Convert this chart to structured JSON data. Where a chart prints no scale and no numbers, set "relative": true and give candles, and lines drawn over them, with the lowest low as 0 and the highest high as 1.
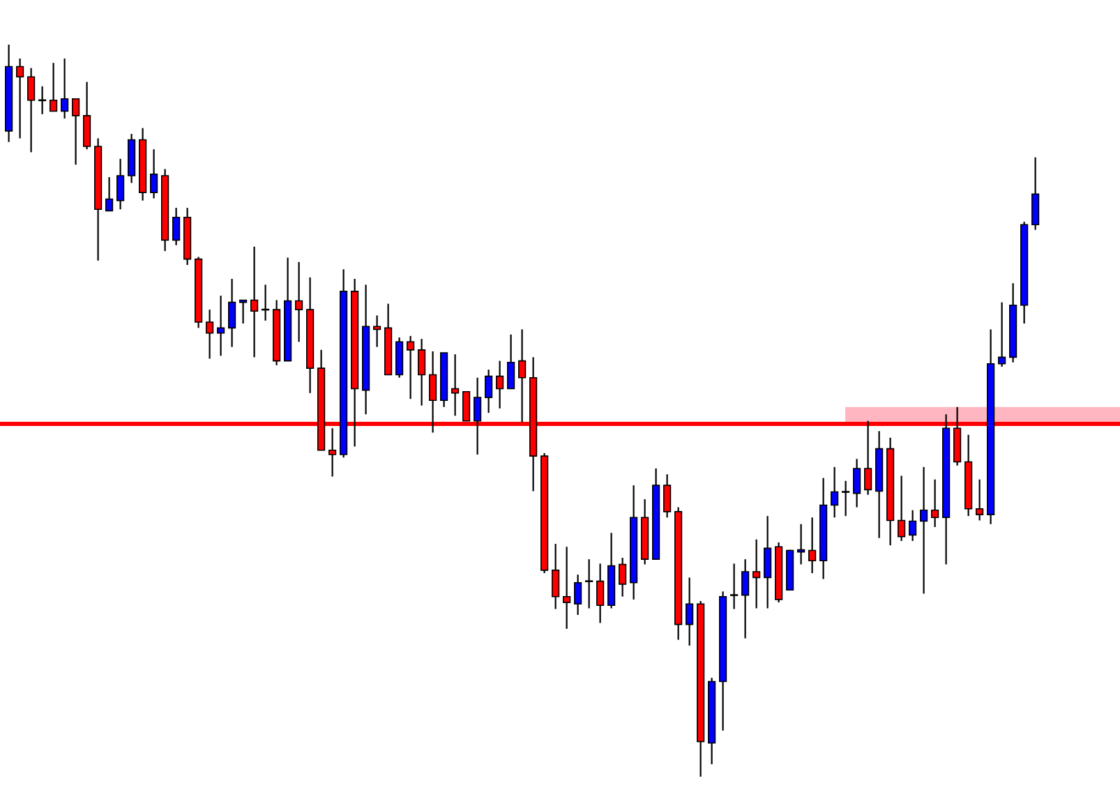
{
  "chart_data": {
    "type": "candlestick",
    "relative": true,
    "categories": [
      null,
      null,
      null,
      null,
      null,
      null,
      null,
      null,
      null,
      null,
      null,
      null,
      null,
      null,
      null,
      null,
      null,
      null,
      null,
      null,
      null,
      null,
      null,
      null,
      null,
      null,
      null,
      null,
      null,
      null,
      null,
      null,
      null,
      null,
      null,
      null,
      null,
      null,
      null,
      null,
      null,
      null,
      null,
      null,
      null,
      null,
      null,
      null,
      null,
      null,
      null,
      null,
      null,
      null,
      null,
      null,
      null,
      null,
      null,
      null,
      null,
      null,
      null,
      null,
      null,
      null,
      null,
      null,
      null,
      null,
      null,
      null,
      null,
      null,
      null,
      null,
      null,
      null,
      null,
      null,
      null,
      null,
      null,
      null,
      null,
      null,
      null,
      null,
      null,
      null,
      null,
      null,
      null
    ],
    "ohlc": [
      [
        0.882,
        1,
        0.867,
        0.97
      ],
      [
        0.97,
        0.981,
        0.872,
        0.956
      ],
      [
        0.956,
        0.968,
        0.853,
        0.924
      ],
      [
        0.924,
        0.943,
        0.905,
        0.924
      ],
      [
        0.924,
        0.975,
        0.909,
        0.909
      ],
      [
        0.909,
        0.981,
        0.899,
        0.926
      ],
      [
        0.926,
        0.926,
        0.836,
        0.903
      ],
      [
        0.903,
        0.949,
        0.857,
        0.861
      ],
      [
        0.861,
        0.872,
        0.705,
        0.775
      ],
      [
        0.773,
        0.819,
        0.773,
        0.789
      ],
      [
        0.787,
        0.844,
        0.775,
        0.821
      ],
      [
        0.821,
        0.878,
        0.811,
        0.87
      ],
      [
        0.87,
        0.886,
        0.787,
        0.798
      ],
      [
        0.798,
        0.857,
        0.79,
        0.823
      ],
      [
        0.821,
        0.83,
        0.718,
        0.733
      ],
      [
        0.733,
        0.777,
        0.726,
        0.764
      ],
      [
        0.764,
        0.777,
        0.699,
        0.707
      ],
      [
        0.707,
        0.71,
        0.613,
        0.621
      ],
      [
        0.621,
        0.638,
        0.571,
        0.606
      ],
      [
        0.606,
        0.657,
        0.575,
        0.613
      ],
      [
        0.613,
        0.68,
        0.587,
        0.648
      ],
      [
        0.648,
        0.651,
        0.619,
        0.651
      ],
      [
        0.651,
        0.724,
        0.573,
        0.636
      ],
      [
        0.638,
        0.672,
        0.623,
        0.638
      ],
      [
        0.638,
        0.651,
        0.562,
        0.568
      ],
      [
        0.568,
        0.709,
        0.568,
        0.65
      ],
      [
        0.65,
        0.703,
        0.594,
        0.638
      ],
      [
        0.638,
        0.682,
        0.524,
        0.558
      ],
      [
        0.558,
        0.583,
        0.446,
        0.446
      ],
      [
        0.446,
        0.476,
        0.41,
        0.44
      ],
      [
        0.44,
        0.693,
        0.436,
        0.663
      ],
      [
        0.663,
        0.68,
        0.451,
        0.53
      ],
      [
        0.528,
        0.672,
        0.495,
        0.615
      ],
      [
        0.615,
        0.63,
        0.587,
        0.611
      ],
      [
        0.613,
        0.646,
        0.549,
        0.549
      ],
      [
        0.549,
        0.6,
        0.545,
        0.594
      ],
      [
        0.594,
        0.602,
        0.516,
        0.583
      ],
      [
        0.583,
        0.598,
        0.507,
        0.549
      ],
      [
        0.549,
        0.581,
        0.47,
        0.514
      ],
      [
        0.514,
        0.579,
        0.505,
        0.579
      ],
      [
        0.53,
        0.577,
        0.493,
        0.524
      ],
      [
        0.526,
        0.526,
        0.486,
        0.486
      ],
      [
        0.486,
        0.545,
        0.44,
        0.518
      ],
      [
        0.518,
        0.556,
        0.497,
        0.547
      ],
      [
        0.547,
        0.568,
        0.503,
        0.53
      ],
      [
        0.53,
        0.604,
        0.53,
        0.566
      ],
      [
        0.568,
        0.611,
        0.484,
        0.545
      ],
      [
        0.545,
        0.573,
        0.39,
        0.438
      ],
      [
        0.438,
        0.442,
        0.278,
        0.282
      ],
      [
        0.282,
        0.318,
        0.229,
        0.246
      ],
      [
        0.246,
        0.314,
        0.202,
        0.238
      ],
      [
        0.236,
        0.276,
        0.221,
        0.265
      ],
      [
        0.267,
        0.297,
        0.23,
        0.267
      ],
      [
        0.267,
        0.291,
        0.21,
        0.234
      ],
      [
        0.234,
        0.333,
        0.23,
        0.288
      ],
      [
        0.29,
        0.299,
        0.246,
        0.263
      ],
      [
        0.265,
        0.398,
        0.242,
        0.354
      ],
      [
        0.354,
        0.379,
        0.29,
        0.297
      ],
      [
        0.297,
        0.421,
        0.297,
        0.398
      ],
      [
        0.398,
        0.413,
        0.354,
        0.362
      ],
      [
        0.362,
        0.368,
        0.187,
        0.208
      ],
      [
        0.208,
        0.272,
        0.179,
        0.236
      ],
      [
        0.236,
        0.24,
        0,
        0.048
      ],
      [
        0.046,
        0.135,
        0.017,
        0.13
      ],
      [
        0.13,
        0.253,
        0.063,
        0.246
      ],
      [
        0.248,
        0.291,
        0.229,
        0.248
      ],
      [
        0.248,
        0.297,
        0.189,
        0.28
      ],
      [
        0.28,
        0.324,
        0.23,
        0.272
      ],
      [
        0.272,
        0.356,
        0.23,
        0.312
      ],
      [
        0.314,
        0.32,
        0.238,
        0.242
      ],
      [
        0.255,
        0.31,
        0.255,
        0.309
      ],
      [
        0.307,
        0.345,
        0.29,
        0.31
      ],
      [
        0.309,
        0.354,
        0.278,
        0.295
      ],
      [
        0.295,
        0.408,
        0.27,
        0.371
      ],
      [
        0.371,
        0.423,
        0.354,
        0.389
      ],
      [
        0.389,
        0.404,
        0.356,
        0.389
      ],
      [
        0.387,
        0.434,
        0.368,
        0.421
      ],
      [
        0.421,
        0.486,
        0.385,
        0.392
      ],
      [
        0.39,
        0.472,
        0.326,
        0.448
      ],
      [
        0.448,
        0.463,
        0.316,
        0.35
      ],
      [
        0.35,
        0.411,
        0.322,
        0.328
      ],
      [
        0.33,
        0.364,
        0.322,
        0.349
      ],
      [
        0.349,
        0.423,
        0.25,
        0.364
      ],
      [
        0.364,
        0.406,
        0.341,
        0.354
      ],
      [
        0.354,
        0.495,
        0.29,
        0.476
      ],
      [
        0.476,
        0.505,
        0.425,
        0.43
      ],
      [
        0.43,
        0.467,
        0.356,
        0.366
      ],
      [
        0.366,
        0.406,
        0.35,
        0.358
      ],
      [
        0.358,
        0.611,
        0.345,
        0.564
      ],
      [
        0.564,
        0.648,
        0.56,
        0.573
      ],
      [
        0.573,
        0.674,
        0.566,
        0.644
      ],
      [
        0.644,
        0.758,
        0.619,
        0.754
      ],
      [
        0.754,
        0.846,
        0.747,
        0.796
      ]
    ],
    "colors": [
      "#0000ff",
      "#ff0000",
      "#ff0000",
      "#000000",
      "#ff0000",
      "#0000ff",
      "#ff0000",
      "#ff0000",
      "#ff0000",
      "#0000ff",
      "#0000ff",
      "#0000ff",
      "#ff0000",
      "#0000ff",
      "#ff0000",
      "#0000ff",
      "#ff0000",
      "#ff0000",
      "#ff0000",
      "#0000ff",
      "#0000ff",
      "#0000ff",
      "#ff0000",
      "#000000",
      "#ff0000",
      "#0000ff",
      "#ff0000",
      "#ff0000",
      "#ff0000",
      "#ff0000",
      "#0000ff",
      "#ff0000",
      "#0000ff",
      "#ff0000",
      "#ff0000",
      "#0000ff",
      "#ff0000",
      "#ff0000",
      "#ff0000",
      "#0000ff",
      "#ff0000",
      "#ff0000",
      "#0000ff",
      "#0000ff",
      "#ff0000",
      "#0000ff",
      "#ff0000",
      "#ff0000",
      "#ff0000",
      "#ff0000",
      "#ff0000",
      "#0000ff",
      "#000000",
      "#ff0000",
      "#0000ff",
      "#ff0000",
      "#0000ff",
      "#ff0000",
      "#0000ff",
      "#ff0000",
      "#ff0000",
      "#0000ff",
      "#ff0000",
      "#0000ff",
      "#0000ff",
      "#000000",
      "#0000ff",
      "#ff0000",
      "#0000ff",
      "#ff0000",
      "#0000ff",
      "#0000ff",
      "#ff0000",
      "#0000ff",
      "#0000ff",
      "#000000",
      "#0000ff",
      "#ff0000",
      "#0000ff",
      "#ff0000",
      "#ff0000",
      "#0000ff",
      "#0000ff",
      "#ff0000",
      "#0000ff",
      "#ff0000",
      "#ff0000",
      "#ff0000",
      "#0000ff",
      "#0000ff",
      "#0000ff",
      "#0000ff",
      "#0000ff"
    ],
    "ref_lines": [
      {
        "axis": "y",
        "value": 0.482,
        "color": "#ff0000"
      }
    ],
    "bands": [
      {
        "axis": "y",
        "from": 0.482,
        "to": 0.505,
        "color": "#ffb6c1"
      }
    ]
  }
}
